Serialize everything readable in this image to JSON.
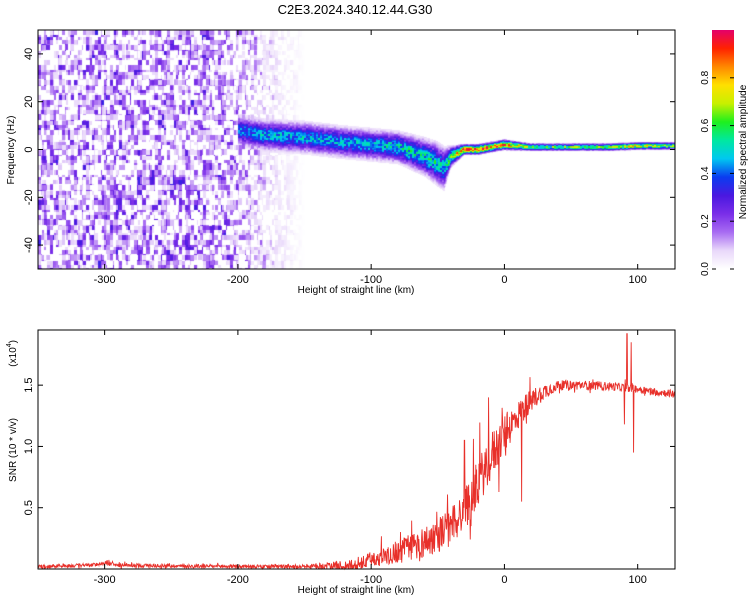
{
  "figure": {
    "title": "C2E3.2024.340.12.44.G30"
  },
  "colors": {
    "snr_line": "#e8302a",
    "background": "#ffffff",
    "colormap": [
      "#ffffff",
      "#e9d8fa",
      "#a86cf2",
      "#7a2ee8",
      "#4a18e0",
      "#0a3cf0",
      "#00c8f0",
      "#00e8a0",
      "#1ef01e",
      "#c8f000",
      "#ffe000",
      "#ff8800",
      "#ff2200",
      "#e4006a"
    ]
  },
  "chart_data": [
    {
      "type": "heatmap",
      "title": "",
      "xlabel": "Height of straight line (km)",
      "ylabel": "Frequency (Hz)",
      "xlim": [
        -350,
        128
      ],
      "ylim": [
        -50,
        50
      ],
      "x_ticks": [
        -300,
        -200,
        -100,
        0,
        100
      ],
      "y_ticks": [
        -40,
        -20,
        0,
        20,
        40
      ],
      "colorbar": {
        "label": "Normalized spectral amplitude",
        "range": [
          0,
          1
        ],
        "ticks": [
          0.0,
          0.2,
          0.4,
          0.6,
          0.8
        ],
        "tick_labels": [
          "0.0",
          "0.2",
          "0.4",
          "0.6",
          "0.8"
        ]
      },
      "noise_region": {
        "x_range": [
          -350,
          -150
        ],
        "y_range": [
          -50,
          50
        ],
        "amplitude_range": [
          0.02,
          0.25
        ]
      },
      "signal_ridge": {
        "x": [
          -200,
          -180,
          -150,
          -120,
          -100,
          -80,
          -60,
          -50,
          -45,
          -40,
          -30,
          -20,
          -10,
          0,
          20,
          50,
          80,
          100,
          128
        ],
        "frequency": [
          8,
          6,
          5,
          3,
          2,
          1,
          -3,
          -6,
          -8,
          -3,
          0,
          0,
          1,
          2,
          1,
          1,
          1,
          1.5,
          1.5
        ],
        "half_width_hz": [
          6,
          6,
          6,
          6,
          6,
          6,
          7,
          8,
          8,
          4,
          2,
          2,
          2,
          2,
          1.5,
          1.5,
          1.5,
          1.5,
          1.5
        ],
        "peak_amplitude": [
          0.4,
          0.45,
          0.45,
          0.45,
          0.45,
          0.5,
          0.5,
          0.5,
          0.45,
          0.6,
          0.9,
          0.9,
          0.8,
          0.85,
          0.6,
          0.6,
          0.65,
          0.7,
          0.6
        ]
      }
    },
    {
      "type": "line",
      "title": "",
      "xlabel": "Height of straight line (km)",
      "ylabel": "SNR (10 * v/v)",
      "y_scale_label": "(x10",
      "y_scale_exponent": "4",
      "xlim": [
        -350,
        128
      ],
      "ylim": [
        0,
        1.95
      ],
      "x_ticks": [
        -300,
        -200,
        -100,
        0,
        100
      ],
      "y_ticks": [
        0.5,
        1.0,
        1.5
      ],
      "y_tick_labels": [
        "0.5",
        "1.0",
        "1.5"
      ],
      "series": [
        {
          "trend_x": [
            -350,
            -310,
            -300,
            -290,
            -200,
            -150,
            -110,
            -100,
            -80,
            -60,
            -40,
            -30,
            -20,
            -10,
            0,
            10,
            20,
            30,
            40,
            60,
            80,
            100,
            110,
            128
          ],
          "trend_y": [
            0.02,
            0.03,
            0.05,
            0.03,
            0.02,
            0.02,
            0.03,
            0.08,
            0.14,
            0.22,
            0.34,
            0.48,
            0.7,
            0.92,
            1.1,
            1.25,
            1.38,
            1.45,
            1.5,
            1.5,
            1.49,
            1.47,
            1.45,
            1.43
          ],
          "noise_x": [
            -350,
            -150,
            -110,
            -80,
            -40,
            -10,
            10,
            40,
            128
          ],
          "noise_amp": [
            0.015,
            0.015,
            0.05,
            0.1,
            0.16,
            0.2,
            0.12,
            0.04,
            0.03
          ],
          "spikes": [
            {
              "x": 92,
              "y": 1.92
            },
            {
              "x": 95,
              "y": 1.85
            },
            {
              "x": 90,
              "y": 1.18
            },
            {
              "x": 97,
              "y": 0.95
            },
            {
              "x": 13,
              "y": 0.55
            },
            {
              "x": -25,
              "y": 0.35
            },
            {
              "x": -30,
              "y": 1.05
            },
            {
              "x": -12,
              "y": 1.4
            }
          ]
        }
      ]
    }
  ]
}
